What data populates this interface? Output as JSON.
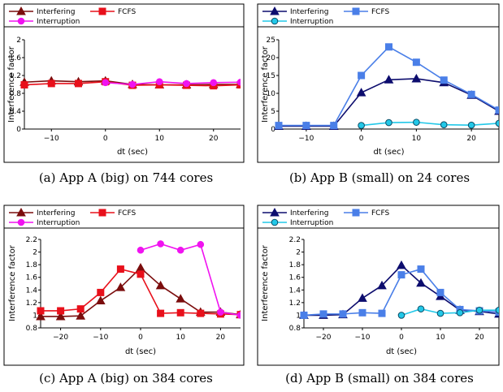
{
  "captions": [
    "(a) App A (big) on 744 cores",
    "(b) App B (small) on 24 cores",
    "(c) App A (big) on 384 cores",
    "(d) App B (small) on 384 cores"
  ],
  "colors": {
    "interfering_a": "#7b0d0d",
    "fcfs_a": "#e8101b",
    "interruption_a": "#f013f0",
    "interfering_b": "#0d0d6e",
    "fcfs_b": "#4a7fe8",
    "interruption_b": "#22c8e8"
  },
  "chart_data": [
    {
      "type": "line",
      "xlabel": "dt (sec)",
      "ylabel": "Interference factor",
      "xlim": [
        -15,
        25
      ],
      "ylim": [
        0,
        2
      ],
      "xticks": [
        -10,
        0,
        10,
        20
      ],
      "xtick_labels": [
        "−10",
        "0",
        "10",
        "20"
      ],
      "yticks": [
        0,
        0.4,
        0.8,
        1.2,
        1.6,
        2
      ],
      "ytick_labels": [
        "0",
        "0.4",
        "0.8",
        "1.2",
        "1.6",
        "2"
      ],
      "legend": "top",
      "series": [
        {
          "name": "Interfering",
          "marker": "triangle",
          "color": "#7b0d0d",
          "x": [
            -15,
            -10,
            -5,
            0,
            5,
            10,
            15,
            20,
            25
          ],
          "y": [
            1.05,
            1.08,
            1.06,
            1.08,
            1.0,
            0.99,
            0.99,
            1.0,
            1.0
          ]
        },
        {
          "name": "FCFS",
          "marker": "square",
          "color": "#e8101b",
          "x": [
            -15,
            -10,
            -5,
            0,
            5,
            10,
            15,
            20,
            25
          ],
          "y": [
            0.99,
            1.02,
            1.02,
            1.06,
            0.98,
            0.99,
            0.98,
            0.97,
            0.99
          ]
        },
        {
          "name": "Interruption",
          "marker": "circle",
          "color": "#f013f0",
          "x": [
            0,
            5,
            10,
            15,
            20,
            25
          ],
          "y": [
            1.04,
            1.0,
            1.06,
            1.02,
            1.04,
            1.05
          ]
        }
      ]
    },
    {
      "type": "line",
      "xlabel": "dt (sec)",
      "ylabel": "Interference factor",
      "xlim": [
        -15,
        25
      ],
      "ylim": [
        0,
        25
      ],
      "xticks": [
        -10,
        0,
        10,
        20
      ],
      "xtick_labels": [
        "−10",
        "0",
        "10",
        "20"
      ],
      "yticks": [
        0,
        5,
        10,
        15,
        20,
        25
      ],
      "ytick_labels": [
        "0",
        "5",
        "10",
        "15",
        "20",
        "25"
      ],
      "legend": "top",
      "series": [
        {
          "name": "Interfering",
          "marker": "triangle",
          "color": "#0d0d6e",
          "x": [
            -15,
            -10,
            -5,
            0,
            5,
            10,
            15,
            20,
            25
          ],
          "y": [
            0.8,
            0.8,
            0.8,
            10.2,
            13.8,
            14.1,
            13.0,
            9.5,
            5.0
          ]
        },
        {
          "name": "FCFS",
          "marker": "square",
          "color": "#4a7fe8",
          "x": [
            -15,
            -10,
            -5,
            0,
            5,
            10,
            15,
            20,
            25
          ],
          "y": [
            1.0,
            1.0,
            1.0,
            15.0,
            23.0,
            18.7,
            13.7,
            9.7,
            5.3
          ]
        },
        {
          "name": "Interruption",
          "marker": "circle",
          "color": "#22c8e8",
          "x": [
            0,
            5,
            10,
            15,
            20,
            25
          ],
          "y": [
            1.0,
            1.8,
            1.9,
            1.2,
            1.1,
            1.6
          ]
        }
      ]
    },
    {
      "type": "line",
      "xlabel": "dt (sec)",
      "ylabel": "Interference factor",
      "xlim": [
        -25,
        25
      ],
      "ylim": [
        0.8,
        2.2
      ],
      "xticks": [
        -20,
        -10,
        0,
        10,
        20
      ],
      "xtick_labels": [
        "−20",
        "−10",
        "0",
        "10",
        "20"
      ],
      "yticks": [
        0.8,
        1,
        1.2,
        1.4,
        1.6,
        1.8,
        2,
        2.2
      ],
      "ytick_labels": [
        "0.8",
        "1",
        "1.2",
        "1.4",
        "1.6",
        "1.8",
        "2",
        "2.2"
      ],
      "legend": "top",
      "series": [
        {
          "name": "Interfering",
          "marker": "triangle",
          "color": "#7b0d0d",
          "x": [
            -25,
            -20,
            -15,
            -10,
            -5,
            0,
            5,
            10,
            15,
            20,
            25
          ],
          "y": [
            0.98,
            0.98,
            0.99,
            1.23,
            1.44,
            1.75,
            1.47,
            1.26,
            1.05,
            1.05,
            1.01
          ]
        },
        {
          "name": "FCFS",
          "marker": "square",
          "color": "#e8101b",
          "x": [
            -25,
            -20,
            -15,
            -10,
            -5,
            0,
            5,
            10,
            15,
            20,
            25
          ],
          "y": [
            1.07,
            1.07,
            1.1,
            1.36,
            1.73,
            1.65,
            1.03,
            1.04,
            1.03,
            1.02,
            1.01
          ]
        },
        {
          "name": "Interruption",
          "marker": "circle",
          "color": "#f013f0",
          "x": [
            0,
            5,
            10,
            15,
            20,
            25
          ],
          "y": [
            2.03,
            2.13,
            2.03,
            2.12,
            1.05,
            1.0
          ]
        }
      ]
    },
    {
      "type": "line",
      "xlabel": "dt (sec)",
      "ylabel": "Interference factor",
      "xlim": [
        -25,
        25
      ],
      "ylim": [
        0.8,
        2.2
      ],
      "xticks": [
        -20,
        -10,
        0,
        10,
        20
      ],
      "xtick_labels": [
        "−20",
        "−10",
        "0",
        "10",
        "20"
      ],
      "yticks": [
        0.8,
        1,
        1.2,
        1.4,
        1.6,
        1.8,
        2,
        2.2
      ],
      "ytick_labels": [
        "0.8",
        "1",
        "1.2",
        "1.4",
        "1.6",
        "1.8",
        "2",
        "2.2"
      ],
      "legend": "top",
      "series": [
        {
          "name": "Interfering",
          "marker": "triangle",
          "color": "#0d0d6e",
          "x": [
            -25,
            -20,
            -15,
            -10,
            -5,
            0,
            5,
            10,
            15,
            20,
            25
          ],
          "y": [
            1.0,
            1.0,
            1.01,
            1.27,
            1.47,
            1.79,
            1.51,
            1.3,
            1.08,
            1.06,
            1.02
          ]
        },
        {
          "name": "FCFS",
          "marker": "square",
          "color": "#4a7fe8",
          "x": [
            -25,
            -20,
            -15,
            -10,
            -5,
            0,
            5,
            10,
            15,
            20,
            25
          ],
          "y": [
            1.0,
            1.02,
            1.02,
            1.04,
            1.03,
            1.64,
            1.73,
            1.36,
            1.09,
            1.07,
            1.05
          ]
        },
        {
          "name": "Interruption",
          "marker": "circle",
          "color": "#22c8e8",
          "x": [
            0,
            5,
            10,
            15,
            20,
            25
          ],
          "y": [
            1.0,
            1.1,
            1.03,
            1.04,
            1.08,
            1.08
          ]
        }
      ]
    }
  ]
}
